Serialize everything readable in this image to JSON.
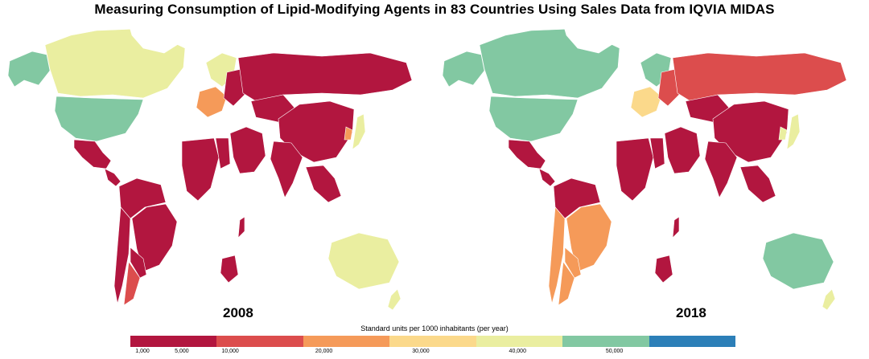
{
  "title": "Measuring Consumption of Lipid-Modifying Agents in 83 Countries Using Sales Data from IQVIA MIDAS",
  "maps": [
    {
      "year": "2008",
      "regions": {
        "alaska": "green",
        "canada": "yellow",
        "greenland": "none",
        "usa": "green",
        "mexico": "red",
        "central_america": "red",
        "south_america_north": "red",
        "brazil": "red",
        "chile": "red",
        "argentina_north": "red",
        "argentina_south": "coral",
        "russia": "red",
        "china": "red",
        "kazakhstan": "red",
        "middle_east": "red",
        "india": "red",
        "japan": "yellow",
        "korea": "orange",
        "southeast_asia": "red",
        "western_europe": "orange",
        "northern_europe": "yellow",
        "eastern_europe": "red",
        "north_africa": "red",
        "egypt": "red",
        "south_africa": "red",
        "madagascar": "red",
        "australia": "yellow",
        "new_zealand": "yellow"
      }
    },
    {
      "year": "2018",
      "regions": {
        "alaska": "green",
        "canada": "green",
        "greenland": "none",
        "usa": "green",
        "mexico": "red",
        "central_america": "red",
        "south_america_north": "red",
        "brazil": "orange",
        "chile": "orange",
        "argentina_north": "orange",
        "argentina_south": "orange",
        "russia": "coral",
        "china": "red",
        "kazakhstan": "red",
        "middle_east": "red",
        "india": "red",
        "japan": "yellow",
        "korea": "yellow",
        "southeast_asia": "red",
        "western_europe": "lightyellow",
        "northern_europe": "green",
        "eastern_europe": "coral",
        "north_africa": "red",
        "egypt": "red",
        "south_africa": "red",
        "madagascar": "red",
        "australia": "green",
        "new_zealand": "yellow"
      }
    }
  ],
  "palette": {
    "red": "#b2163f",
    "coral": "#dc4d4d",
    "orange": "#f59a59",
    "lightyellow": "#fbd98b",
    "yellow": "#eaeea0",
    "green": "#82c8a2",
    "blue": "#2c7fb8",
    "none": "#ffffff"
  },
  "legend": {
    "title": "Standard units per 1000 inhabitants (per year)",
    "colors": [
      "#b2163f",
      "#dc4d4d",
      "#f59a59",
      "#fbd98b",
      "#eaeea0",
      "#82c8a2",
      "#2c7fb8"
    ],
    "ticks": [
      "1,000",
      "5,000",
      "10,000",
      "20,000",
      "30,000",
      "40,000",
      "50,000"
    ]
  }
}
